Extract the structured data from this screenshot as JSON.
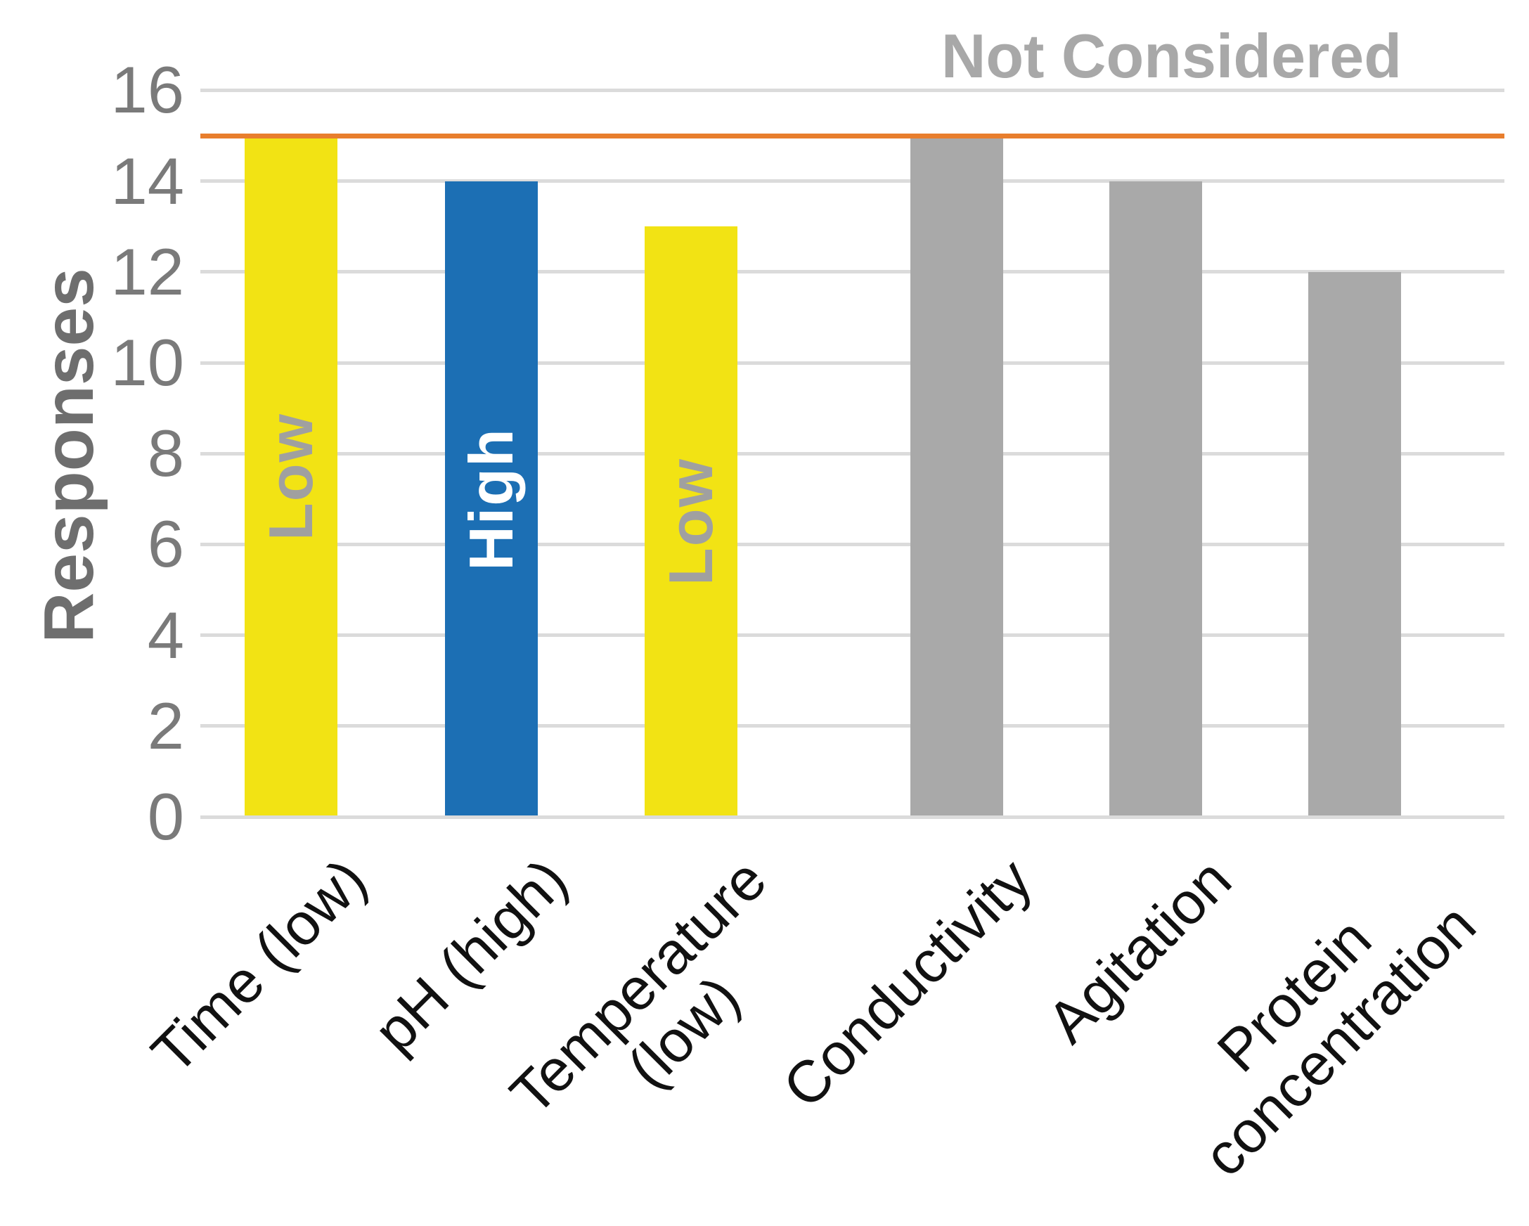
{
  "chart_data": {
    "type": "bar",
    "title": "",
    "ylabel": "Responses",
    "xlabel": "",
    "annotation": "Not Considered",
    "categories": [
      "Time (low)",
      "pH (high)",
      "Temperature (low)",
      "Conductivity",
      "Agitation",
      "Protein concentration"
    ],
    "xtick_lines": [
      [
        "Time (low)"
      ],
      [
        "pH (high)"
      ],
      [
        "Temperature",
        "(low)"
      ],
      [
        "Conductivity"
      ],
      [
        "Agitation"
      ],
      [
        "Protein",
        "concentration"
      ]
    ],
    "values": [
      15,
      14,
      13,
      15,
      14,
      12
    ],
    "bar_in_labels": [
      "Low",
      "High",
      "Low",
      "",
      "",
      ""
    ],
    "bar_colors": [
      "#F2E314",
      "#1C6FB4",
      "#F2E314",
      "#A9A9A9",
      "#A9A9A9",
      "#A9A9A9"
    ],
    "bar_label_colors": [
      "#A0A0A0",
      "#FFFFFF",
      "#A0A0A0",
      "",
      "",
      ""
    ],
    "yticks": [
      0,
      2,
      4,
      6,
      8,
      10,
      12,
      14,
      16
    ],
    "ylim": [
      0,
      16
    ],
    "grid": true,
    "legend": false,
    "reference_line": {
      "value": 15,
      "color": "#E87E2D"
    },
    "colors": {
      "grid": "#DBDBDB",
      "tick_text": "#7A7A7A",
      "axis_title_text": "#6E6E6E",
      "annotation_text": "#A8A8A8",
      "xtick_text": "#111111"
    }
  }
}
